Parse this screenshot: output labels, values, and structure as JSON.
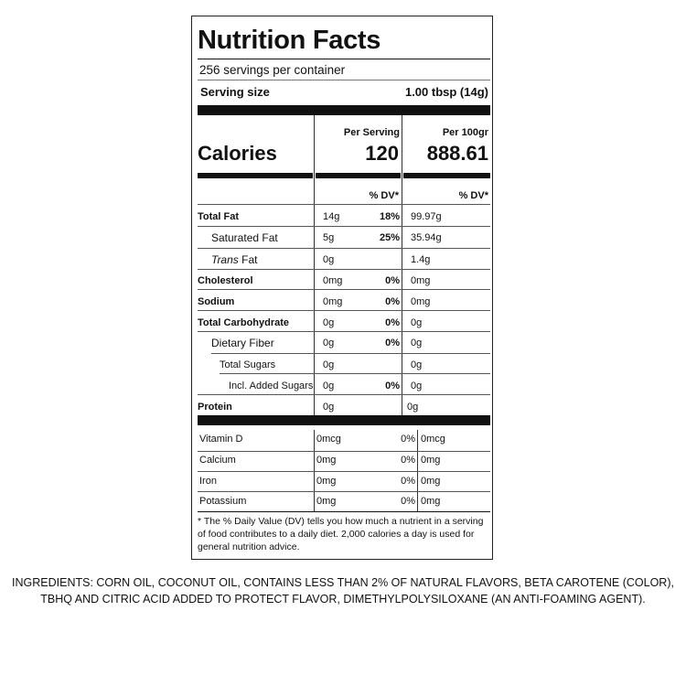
{
  "label": {
    "title": "Nutrition Facts",
    "servings": "256 servings per container",
    "serving_size_label": "Serving size",
    "serving_size_value": "1.00 tbsp (14g)",
    "per_serving_header": "Per Serving",
    "per_100_header": "Per 100gr",
    "calories_label": "Calories",
    "calories_serving": "120",
    "calories_100": "888.61",
    "dv_header": "% DV*",
    "nutrients": [
      {
        "name": "Total Fat",
        "serving": "14g",
        "dv": "18%",
        "per100": "99.97g"
      },
      {
        "name": "Saturated Fat",
        "serving": "5g",
        "dv": "25%",
        "per100": "35.94g"
      },
      {
        "name_italic": "Trans",
        "name_rest": " Fat",
        "serving": "0g",
        "dv": "",
        "per100": "1.4g"
      },
      {
        "name": "Cholesterol",
        "serving": "0mg",
        "dv": "0%",
        "per100": "0mg"
      },
      {
        "name": "Sodium",
        "serving": "0mg",
        "dv": "0%",
        "per100": "0mg"
      },
      {
        "name": "Total Carbohydrate",
        "serving": "0g",
        "dv": "0%",
        "per100": "0g"
      },
      {
        "name": "Dietary Fiber",
        "serving": "0g",
        "dv": "0%",
        "per100": "0g"
      },
      {
        "name": "Total Sugars",
        "serving": "0g",
        "dv": "",
        "per100": "0g"
      },
      {
        "name": "Incl. Added Sugars",
        "serving": "0g",
        "dv": "0%",
        "per100": "0g"
      },
      {
        "name": "Protein",
        "serving": "0g",
        "dv": "",
        "per100": "0g"
      }
    ],
    "vitamins": [
      {
        "name": "Vitamin D",
        "serving": "0mcg",
        "dv": "0%",
        "per100": "0mcg"
      },
      {
        "name": "Calcium",
        "serving": "0mg",
        "dv": "0%",
        "per100": "0mg"
      },
      {
        "name": "Iron",
        "serving": "0mg",
        "dv": "0%",
        "per100": "0mg"
      },
      {
        "name": "Potassium",
        "serving": "0mg",
        "dv": "0%",
        "per100": "0mg"
      }
    ],
    "footnote": "* The % Daily Value (DV) tells you how much a nutrient in a serving of food contributes to a daily diet. 2,000 calories a day is used for general nutrition advice."
  },
  "ingredients": {
    "line1": "INGREDIENTS: CORN OIL, COCONUT OIL, CONTAINS LESS THAN 2% OF NATURAL FLAVORS, BETA CAROTENE (COLOR),",
    "line2": "TBHQ AND CITRIC ACID ADDED TO PROTECT FLAVOR, DIMETHYLPOLYSILOXANE (AN ANTI-FOAMING AGENT)."
  }
}
